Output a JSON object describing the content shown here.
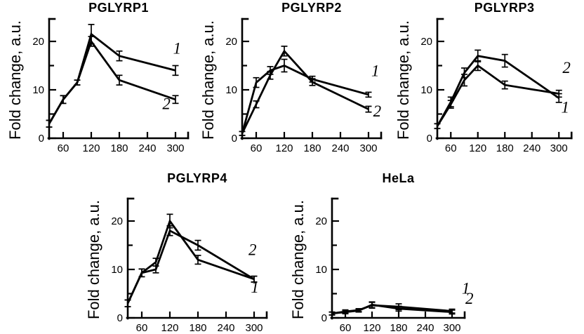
{
  "figure": {
    "background": "#ffffff",
    "ink_color": "#000000"
  },
  "chart_data": [
    {
      "id": "pglyrp1",
      "type": "line",
      "title": "PGLYRP1",
      "ylabel": "Fold change, a.u.",
      "xlabel": "",
      "x": [
        30,
        60,
        90,
        120,
        180,
        300
      ],
      "x_ticks": [
        60,
        120,
        180,
        240,
        300
      ],
      "y_ticks": [
        0,
        10,
        20
      ],
      "y_minor_ticks": [
        5,
        15
      ],
      "xlim": [
        30,
        335
      ],
      "ylim": [
        0,
        24.5
      ],
      "grid": false,
      "series": [
        {
          "name": "1",
          "label": "1",
          "values": [
            3,
            8,
            11.5,
            21.5,
            17,
            14
          ],
          "errors": [
            0.7,
            0.8,
            0.5,
            2,
            1,
            1
          ],
          "label_at": [
            295,
            17.5
          ]
        },
        {
          "name": "2",
          "label": "2",
          "values": [
            3,
            8,
            11.5,
            20,
            12,
            8
          ],
          "errors": [
            0.7,
            0.8,
            0.5,
            1,
            1,
            0.8
          ],
          "label_at": [
            272,
            6
          ]
        }
      ]
    },
    {
      "id": "pglyrp2",
      "type": "line",
      "title": "PGLYRP2",
      "ylabel": "Fold change, a.u.",
      "xlabel": "",
      "x": [
        30,
        60,
        90,
        120,
        180,
        300
      ],
      "x_ticks": [
        60,
        120,
        180,
        240,
        300
      ],
      "y_ticks": [
        0,
        10,
        20
      ],
      "y_minor_ticks": [
        5,
        15
      ],
      "xlim": [
        30,
        335
      ],
      "ylim": [
        0,
        24.5
      ],
      "grid": false,
      "series": [
        {
          "name": "1",
          "label": "1",
          "values": [
            1,
            11.5,
            14,
            15,
            12.2,
            9
          ],
          "errors": [
            0.4,
            1,
            0.8,
            1.3,
            0.6,
            0.5
          ],
          "label_at": [
            306,
            12.8
          ]
        },
        {
          "name": "2",
          "label": "2",
          "values": [
            1,
            7,
            13,
            18,
            11.6,
            6
          ],
          "errors": [
            0.4,
            0.7,
            0.8,
            1,
            0.7,
            0.6
          ],
          "label_at": [
            310,
            4.5
          ]
        }
      ]
    },
    {
      "id": "pglyrp3",
      "type": "line",
      "title": "PGLYRP3",
      "ylabel": "Fold change, a.u.",
      "xlabel": "",
      "x": [
        30,
        60,
        90,
        120,
        180,
        300
      ],
      "x_ticks": [
        60,
        120,
        180,
        240,
        300
      ],
      "y_ticks": [
        0,
        10,
        20
      ],
      "y_minor_ticks": [
        5,
        15
      ],
      "xlim": [
        30,
        335
      ],
      "ylim": [
        0,
        24.5
      ],
      "grid": false,
      "series": [
        {
          "name": "1",
          "label": "1",
          "values": [
            2.5,
            7,
            12,
            15,
            11,
            9.2
          ],
          "errors": [
            0.5,
            0.8,
            1.2,
            1,
            0.8,
            0.7
          ],
          "label_at": [
            305,
            5.3
          ]
        },
        {
          "name": "2",
          "label": "2",
          "values": [
            2.5,
            7.5,
            13.5,
            17,
            16,
            8.3
          ],
          "errors": [
            0.5,
            1,
            1,
            1.2,
            1.3,
            0.9
          ],
          "label_at": [
            308,
            13.5
          ]
        }
      ]
    },
    {
      "id": "pglyrp4",
      "type": "line",
      "title": "PGLYRP4",
      "ylabel": "Fold change, a.u.",
      "xlabel": "",
      "x": [
        30,
        60,
        90,
        120,
        180,
        300
      ],
      "x_ticks": [
        60,
        120,
        180,
        240,
        300
      ],
      "y_ticks": [
        0,
        10,
        20
      ],
      "y_minor_ticks": [
        5,
        15
      ],
      "xlim": [
        30,
        335
      ],
      "ylim": [
        0,
        24.5
      ],
      "grid": false,
      "series": [
        {
          "name": "1",
          "label": "1",
          "values": [
            3,
            9.3,
            11.5,
            20,
            12,
            8
          ],
          "errors": [
            0.7,
            0.8,
            0.8,
            1.4,
            0.9,
            0.6
          ],
          "label_at": [
            293,
            5.2
          ]
        },
        {
          "name": "2",
          "label": "2",
          "values": [
            3,
            9.3,
            10,
            18,
            15,
            8
          ],
          "errors": [
            0.7,
            0.8,
            0.7,
            1,
            1,
            0.6
          ],
          "label_at": [
            288,
            13
          ]
        }
      ]
    },
    {
      "id": "hela",
      "type": "line",
      "title": "HeLa",
      "ylabel": "Fold change, a.u.",
      "xlabel": "",
      "x": [
        30,
        60,
        90,
        120,
        180,
        300
      ],
      "x_ticks": [
        60,
        120,
        180,
        240,
        300
      ],
      "y_ticks": [
        0,
        10,
        20
      ],
      "y_minor_ticks": [
        5,
        15
      ],
      "xlim": [
        30,
        335
      ],
      "ylim": [
        0,
        24.5
      ],
      "grid": false,
      "series": [
        {
          "name": "1",
          "label": "1",
          "values": [
            0.9,
            1.3,
            1.6,
            2.6,
            2.3,
            1.4
          ],
          "errors": [
            0.3,
            0.35,
            0.3,
            0.6,
            0.6,
            0.4
          ],
          "label_at": [
            322,
            5
          ]
        },
        {
          "name": "2",
          "label": "2",
          "values": [
            0.9,
            1.2,
            1.5,
            2.7,
            1.9,
            1.2
          ],
          "errors": [
            0.3,
            0.35,
            0.3,
            0.6,
            0.5,
            0.4
          ],
          "label_at": [
            330,
            2.9
          ]
        }
      ]
    }
  ]
}
